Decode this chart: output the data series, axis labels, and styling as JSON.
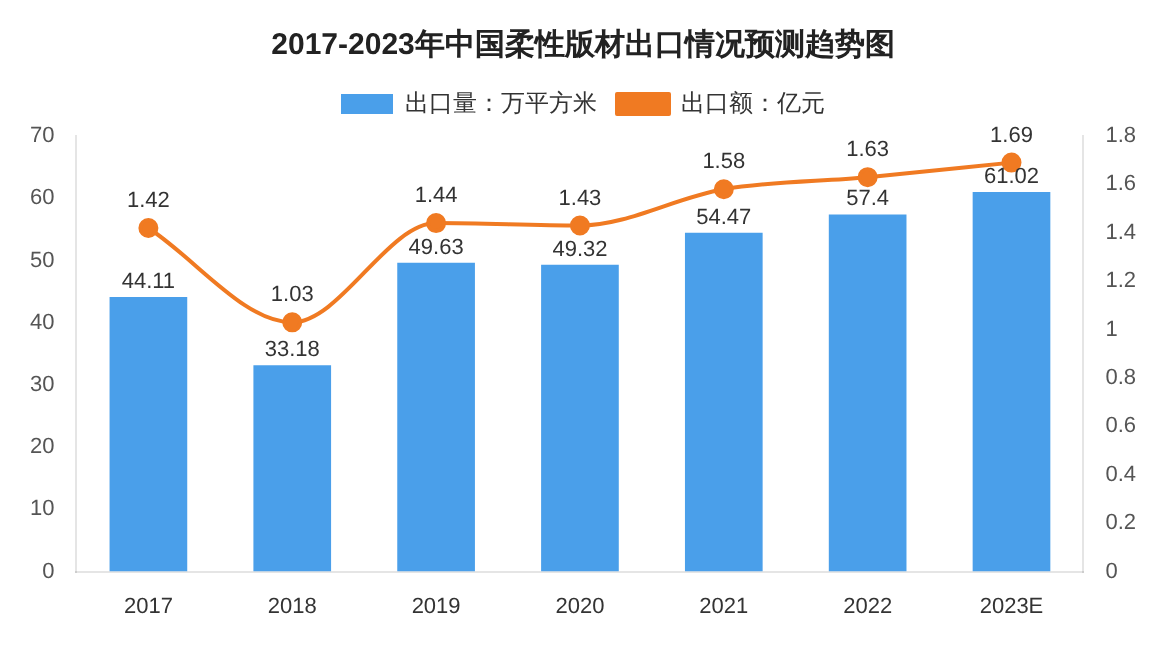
{
  "chart_data": {
    "type": "bar",
    "title": "2017-2023年中国柔性版材出口情况预测趋势图",
    "categories": [
      "2017",
      "2018",
      "2019",
      "2020",
      "2021",
      "2022",
      "2023E"
    ],
    "series": [
      {
        "name": "出口量：万平方米",
        "color": "#4a9fea",
        "values": [
          44.11,
          33.18,
          49.63,
          49.32,
          54.47,
          57.4,
          61.02
        ]
      },
      {
        "name": "出口额：亿元",
        "type": "line",
        "axis": "y2",
        "color": "#f07a22",
        "marker": "circle",
        "values": [
          1.42,
          1.03,
          1.44,
          1.43,
          1.58,
          1.63,
          1.69
        ]
      }
    ],
    "ylim": [
      0,
      70
    ],
    "yticks": [
      0,
      10,
      20,
      30,
      40,
      50,
      60,
      70
    ],
    "y2lim": [
      0,
      1.8
    ],
    "y2ticks": [
      0,
      0.2,
      0.4,
      0.6,
      0.8,
      1,
      1.2,
      1.4,
      1.6,
      1.8
    ],
    "data_labels": true,
    "legend": "top"
  }
}
